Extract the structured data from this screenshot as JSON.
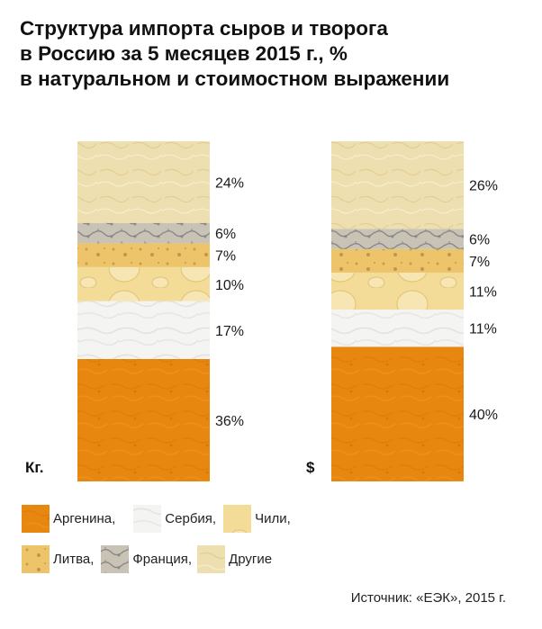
{
  "title_lines": [
    "Структура импорта сыров и творога",
    "в Россию за 5 месяцев 2015 г., %",
    "в натуральном и стоимостном выражении"
  ],
  "colors": {
    "argentina": "#e8870f",
    "serbia": "#f3f3f1",
    "chile": "#f0d78e",
    "lithuania": "#edc46a",
    "france": "#bdb7aa",
    "other": "#eedfb0"
  },
  "chart_data": {
    "type": "stacked-bar",
    "categories": [
      "Кг.",
      "$"
    ],
    "series": [
      {
        "name": "Аргенина",
        "key": "argentina",
        "values": [
          36,
          40
        ],
        "labels": [
          "36%",
          "40%"
        ]
      },
      {
        "name": "Сербия",
        "key": "serbia",
        "values": [
          17,
          11
        ],
        "labels": [
          "17%",
          "11%"
        ]
      },
      {
        "name": "Чили",
        "key": "chile",
        "values": [
          10,
          11
        ],
        "labels": [
          "10%",
          "11%"
        ]
      },
      {
        "name": "Литва",
        "key": "lithuania",
        "values": [
          7,
          7
        ],
        "labels": [
          "7%",
          "7%"
        ]
      },
      {
        "name": "Франция",
        "key": "france",
        "values": [
          6,
          6
        ],
        "labels": [
          "6%",
          "6%"
        ]
      },
      {
        "name": "Другие",
        "key": "other",
        "values": [
          24,
          26
        ],
        "labels": [
          "24%",
          "26%"
        ]
      }
    ],
    "stack_order": "bottom-to-top",
    "legend_position": "bottom",
    "unit": "%"
  },
  "legend": {
    "row1": [
      "Аргенина,",
      "Сербия,",
      "Чили,"
    ],
    "row2": [
      "Литва,",
      "Франция,",
      "Другие"
    ]
  },
  "source": "Источник: «ЕЭК», 2015 г."
}
